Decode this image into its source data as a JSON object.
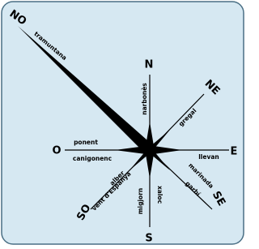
{
  "directions": {
    "north": "N",
    "northeast": "NE",
    "east": "E",
    "southeast": "SE",
    "south": "S",
    "southwest": "SO",
    "west": "O",
    "northwest": "NO"
  },
  "winds": {
    "north": "narbonès",
    "northeast": "gregal",
    "east": "llevan",
    "southeast": [
      "marinada",
      "garbí"
    ],
    "south": [
      "migjorn",
      "xaloc"
    ],
    "southwest": [
      "alber",
      "vent d'Espanya"
    ],
    "west": [
      "ponent",
      "canigonenc"
    ],
    "northwest": "tramuntana"
  }
}
